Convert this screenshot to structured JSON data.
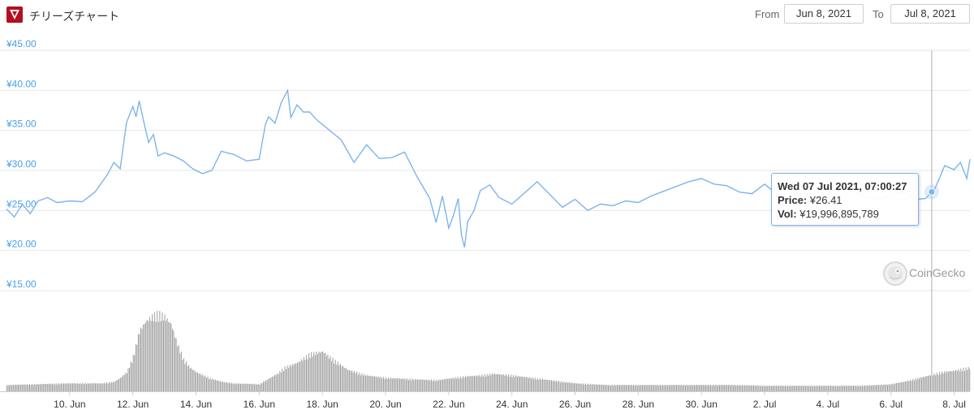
{
  "header": {
    "title": "チリーズチャート",
    "from_label": "From",
    "from_date": "Jun 8, 2021",
    "to_label": "To",
    "to_date": "Jul 8, 2021"
  },
  "tooltip": {
    "date": "Wed 07 Jul 2021, 07:00:27",
    "price_label": "Price:",
    "price_value": "¥26.41",
    "vol_label": "Vol:",
    "vol_value": "¥19,996,895,789"
  },
  "credit": "CoinGecko",
  "colors": {
    "line": "#7cb5ec",
    "volume": "#9e9e9e",
    "axis_labels": "#4a9fe8",
    "logo": "#b30f1f"
  },
  "chart_data": {
    "type": "line",
    "title": "",
    "y_tick_labels": [
      "¥45.00",
      "¥40.00",
      "¥35.00",
      "¥30.00",
      "¥25.00",
      "¥20.00",
      "¥15.00"
    ],
    "y_ticks": [
      45,
      40,
      35,
      30,
      25,
      20,
      15
    ],
    "ylim": [
      15,
      45
    ],
    "x_tick_labels": [
      "10. Jun",
      "12. Jun",
      "14. Jun",
      "16. Jun",
      "18. Jun",
      "20. Jun",
      "22. Jun",
      "24. Jun",
      "26. Jun",
      "28. Jun",
      "30. Jun",
      "2. Jul",
      "4. Jul",
      "6. Jul",
      "8. Jul"
    ],
    "x_ticks": [
      2,
      4,
      6,
      8,
      10,
      12,
      14,
      16,
      18,
      20,
      22,
      24,
      26,
      28,
      30
    ],
    "xlim": [
      0,
      30.5
    ],
    "x_unit": "days since Jun 8, 2021 00:00",
    "price_series": {
      "name": "Price",
      "x": [
        0,
        0.25,
        0.5,
        0.75,
        1,
        1.3,
        1.6,
        2,
        2.4,
        2.8,
        3.2,
        3.4,
        3.6,
        3.8,
        4,
        4.1,
        4.2,
        4.35,
        4.5,
        4.65,
        4.8,
        5,
        5.3,
        5.6,
        5.9,
        6.2,
        6.5,
        6.8,
        7.2,
        7.6,
        8,
        8.2,
        8.3,
        8.5,
        8.7,
        8.9,
        9,
        9.2,
        9.4,
        9.6,
        9.8,
        10.2,
        10.6,
        11,
        11.4,
        11.8,
        12.2,
        12.6,
        13,
        13.4,
        13.6,
        13.8,
        14,
        14.15,
        14.3,
        14.4,
        14.5,
        14.6,
        14.8,
        15,
        15.3,
        15.6,
        16,
        16.4,
        16.8,
        17.2,
        17.6,
        18,
        18.4,
        18.8,
        19.2,
        19.6,
        20,
        20.4,
        20.8,
        21.2,
        21.6,
        22,
        22.4,
        22.8,
        23.2,
        23.6,
        24,
        24.4,
        24.8,
        25.2,
        25.6,
        26,
        26.4,
        26.8,
        27.2,
        27.6,
        28,
        28.3,
        28.6,
        28.85,
        29.1,
        29.4,
        29.7,
        30,
        30.2,
        30.4,
        30.5
      ],
      "y": [
        25.2,
        24.2,
        25.8,
        24.6,
        26.2,
        26.6,
        26.0,
        26.2,
        26.1,
        27.3,
        29.5,
        31.0,
        30.2,
        36.0,
        38.0,
        36.7,
        38.7,
        36.0,
        33.5,
        34.5,
        31.8,
        32.2,
        31.8,
        31.2,
        30.2,
        29.6,
        30.0,
        32.4,
        32.0,
        31.2,
        31.4,
        35.8,
        36.7,
        35.9,
        38.5,
        40.0,
        36.6,
        38.2,
        37.3,
        37.3,
        36.4,
        35.1,
        33.8,
        31.0,
        33.2,
        31.5,
        31.6,
        32.3,
        29.2,
        26.5,
        23.5,
        26.8,
        22.8,
        24.4,
        26.5,
        22.0,
        20.4,
        23.6,
        25.0,
        27.5,
        28.2,
        26.6,
        25.8,
        27.2,
        28.6,
        27.0,
        25.4,
        26.4,
        25.0,
        25.8,
        25.6,
        26.2,
        26.0,
        26.8,
        27.4,
        28.0,
        28.6,
        29.0,
        28.3,
        28.1,
        27.3,
        27.1,
        28.3,
        27.0,
        26.6,
        27.4,
        26.8,
        26.4,
        26.8,
        27.5,
        26.7,
        26.4,
        26.9,
        27.3,
        26.9,
        26.4,
        26.5,
        27.8,
        30.6,
        30.1,
        31.0,
        29.0,
        31.4
      ]
    },
    "volume_series": {
      "name": "Volume",
      "unit": "relative",
      "x": [
        0,
        1,
        2,
        3,
        3.4,
        3.6,
        3.8,
        4.0,
        4.2,
        4.4,
        4.6,
        4.8,
        5.0,
        5.2,
        5.4,
        5.6,
        5.8,
        6.0,
        6.4,
        6.8,
        7.2,
        8.0,
        8.6,
        8.8,
        9.2,
        9.6,
        10.0,
        10.4,
        10.8,
        11.4,
        12,
        13,
        13.6,
        14.2,
        14.6,
        15.0,
        15.4,
        16,
        17,
        18,
        19,
        20,
        21,
        22,
        23,
        24,
        25,
        26,
        27,
        27.6,
        28,
        28.4,
        29,
        29.6,
        30,
        30.5
      ],
      "y": [
        0.08,
        0.09,
        0.1,
        0.1,
        0.12,
        0.17,
        0.24,
        0.44,
        0.76,
        0.88,
        0.94,
        0.98,
        0.94,
        0.85,
        0.6,
        0.4,
        0.3,
        0.24,
        0.17,
        0.12,
        0.1,
        0.09,
        0.23,
        0.3,
        0.36,
        0.47,
        0.5,
        0.38,
        0.27,
        0.2,
        0.17,
        0.15,
        0.14,
        0.17,
        0.19,
        0.2,
        0.22,
        0.2,
        0.15,
        0.1,
        0.08,
        0.08,
        0.08,
        0.08,
        0.08,
        0.07,
        0.07,
        0.07,
        0.07,
        0.08,
        0.09,
        0.12,
        0.18,
        0.24,
        0.26,
        0.3
      ]
    },
    "hover_x": 29.29,
    "grid": true,
    "legend": "none"
  }
}
